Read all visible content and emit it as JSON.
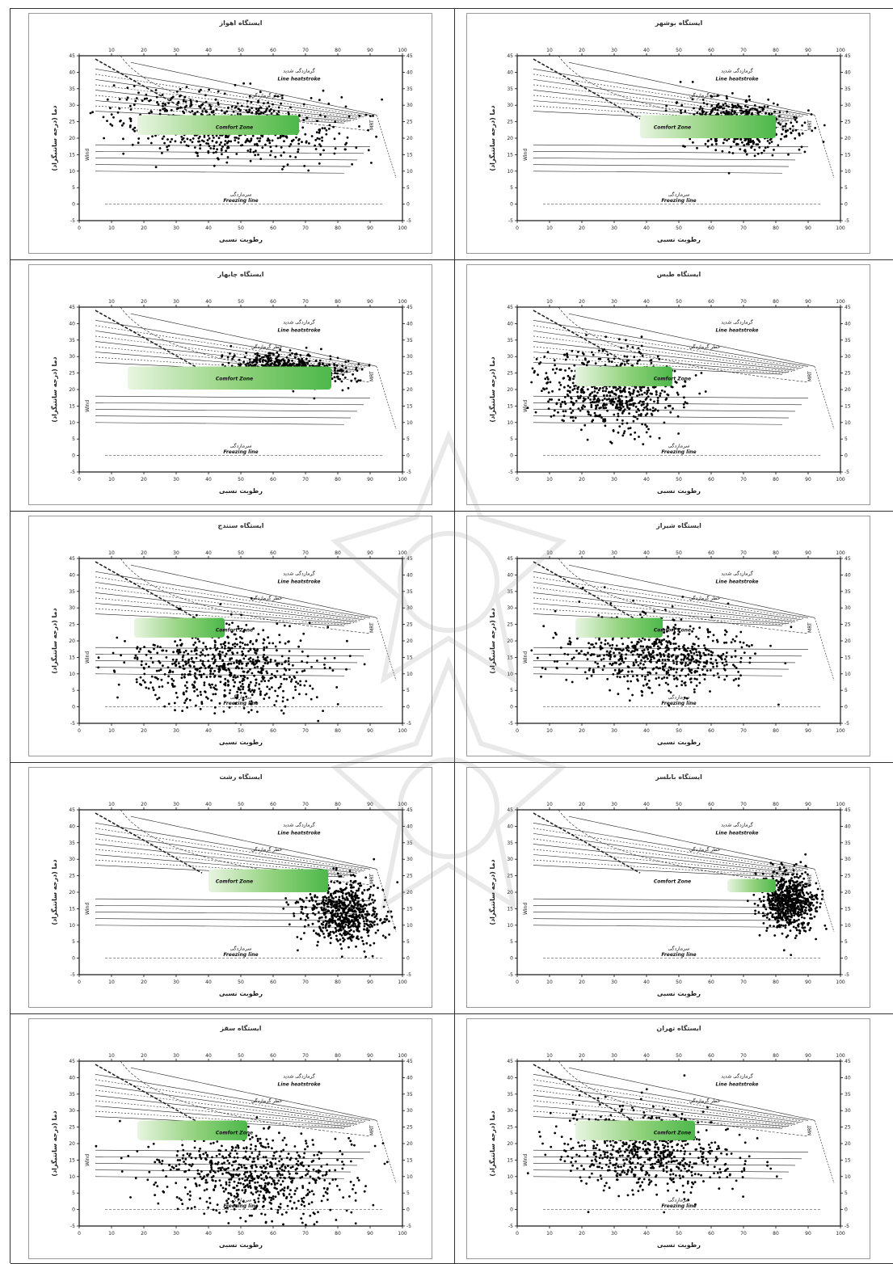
{
  "figure": {
    "panel_labels": {
      "x_axis": "رطوبت نسبی",
      "y_axis": "دما (درجه سانتیگراد)",
      "wind": "Wind",
      "line_heatstroke_fa": "گرمازدگی شدید",
      "line_heatstroke_en": "Line heatstroke",
      "heat_danger": "خطر گرمازدگی",
      "comfort_zone": "Comfort Zone",
      "freezing_fa": "سرمازدگی",
      "freezing_en": "Freezing line",
      "mrt": "MRT"
    }
  },
  "chart_data": [
    {
      "type": "scatter",
      "title": "ایستگاه اهواز",
      "xlabel": "رطوبت نسبی",
      "ylabel": "دما (درجه سانتیگراد)",
      "xlim": [
        0,
        100
      ],
      "ylim": [
        -5,
        45
      ],
      "x_ticks": [
        10,
        20,
        30,
        40,
        50,
        60,
        70,
        80,
        90,
        100
      ],
      "y_ticks": [
        -5,
        0,
        5,
        10,
        15,
        20,
        25,
        30,
        35,
        40,
        45
      ],
      "cloud": {
        "rh_center": 45,
        "rh_spread": 30,
        "t_center": 24,
        "t_spread": 8,
        "t_min": 8,
        "t_max": 48
      },
      "comfort_zone": {
        "rh_range": [
          18,
          68
        ],
        "t_range": [
          21,
          27
        ]
      }
    },
    {
      "type": "scatter",
      "title": "ایستگاه بوشهر",
      "xlabel": "رطوبت نسبی",
      "ylabel": "دما (درجه سانتیگراد)",
      "xlim": [
        0,
        100
      ],
      "ylim": [
        -5,
        45
      ],
      "x_ticks": [
        10,
        20,
        30,
        40,
        50,
        60,
        70,
        80,
        90,
        100
      ],
      "y_ticks": [
        -5,
        0,
        5,
        10,
        15,
        20,
        25,
        30,
        35,
        40,
        45
      ],
      "cloud": {
        "rh_center": 68,
        "rh_spread": 14,
        "t_center": 24,
        "t_spread": 6,
        "t_min": 8,
        "t_max": 38
      },
      "comfort_zone": {
        "rh_range": [
          38,
          80
        ],
        "t_range": [
          20,
          27
        ]
      }
    },
    {
      "type": "scatter",
      "title": "ایستگاه چابهار",
      "xlabel": "رطوبت نسبی",
      "ylabel": "دما (درجه سانتیگراد)",
      "xlim": [
        0,
        100
      ],
      "ylim": [
        -5,
        45
      ],
      "x_ticks": [
        10,
        20,
        30,
        40,
        50,
        60,
        70,
        80,
        90,
        100
      ],
      "y_ticks": [
        -5,
        0,
        5,
        10,
        15,
        20,
        25,
        30,
        35,
        40,
        45
      ],
      "cloud": {
        "rh_center": 65,
        "rh_spread": 14,
        "t_center": 26,
        "t_spread": 4,
        "t_min": 14,
        "t_max": 37
      },
      "comfort_zone": {
        "rh_range": [
          15,
          78
        ],
        "t_range": [
          20,
          27
        ]
      }
    },
    {
      "type": "scatter",
      "title": "ایستگاه طبس",
      "xlabel": "رطوبت نسبی",
      "ylabel": "دما (درجه سانتیگراد)",
      "xlim": [
        0,
        100
      ],
      "ylim": [
        -5,
        45
      ],
      "x_ticks": [
        10,
        20,
        30,
        40,
        50,
        60,
        70,
        80,
        90,
        100
      ],
      "y_ticks": [
        -5,
        0,
        5,
        10,
        15,
        20,
        25,
        30,
        35,
        40,
        45
      ],
      "cloud": {
        "rh_center": 30,
        "rh_spread": 18,
        "t_center": 20,
        "t_spread": 10,
        "t_min": -3,
        "t_max": 45
      },
      "comfort_zone": {
        "rh_range": [
          18,
          48
        ],
        "t_range": [
          21,
          27
        ]
      }
    },
    {
      "type": "scatter",
      "title": "ایستگاه سنندج",
      "xlabel": "رطوبت نسبی",
      "ylabel": "دما (درجه سانتیگراد)",
      "xlim": [
        0,
        100
      ],
      "ylim": [
        -5,
        45
      ],
      "x_ticks": [
        10,
        20,
        30,
        40,
        50,
        60,
        70,
        80,
        90,
        100
      ],
      "y_ticks": [
        -5,
        0,
        5,
        10,
        15,
        20,
        25,
        30,
        35,
        40,
        45
      ],
      "cloud": {
        "rh_center": 45,
        "rh_spread": 24,
        "t_center": 12,
        "t_spread": 11,
        "t_min": -10,
        "t_max": 37
      },
      "comfort_zone": {
        "rh_range": [
          17,
          45
        ],
        "t_range": [
          21,
          27
        ]
      }
    },
    {
      "type": "scatter",
      "title": "ایستگاه شیراز",
      "xlabel": "رطوبت نسبی",
      "ylabel": "دما (درجه سانتیگراد)",
      "xlim": [
        0,
        100
      ],
      "ylim": [
        -5,
        45
      ],
      "x_ticks": [
        10,
        20,
        30,
        40,
        50,
        60,
        70,
        80,
        90,
        100
      ],
      "y_ticks": [
        -5,
        0,
        5,
        10,
        15,
        20,
        25,
        30,
        35,
        40,
        45
      ],
      "cloud": {
        "rh_center": 42,
        "rh_spread": 24,
        "t_center": 16,
        "t_spread": 9,
        "t_min": -4,
        "t_max": 38
      },
      "comfort_zone": {
        "rh_range": [
          18,
          45
        ],
        "t_range": [
          21,
          27
        ]
      }
    },
    {
      "type": "scatter",
      "title": "ایستگاه رشت",
      "xlabel": "رطوبت نسبی",
      "ylabel": "دما (درجه سانتیگراد)",
      "xlim": [
        0,
        100
      ],
      "ylim": [
        -5,
        45
      ],
      "x_ticks": [
        10,
        20,
        30,
        40,
        50,
        60,
        70,
        80,
        90,
        100
      ],
      "y_ticks": [
        -5,
        0,
        5,
        10,
        15,
        20,
        25,
        30,
        35,
        40,
        45
      ],
      "cloud": {
        "rh_center": 82,
        "rh_spread": 10,
        "t_center": 14,
        "t_spread": 8,
        "t_min": -5,
        "t_max": 32
      },
      "comfort_zone": {
        "rh_range": [
          40,
          77
        ],
        "t_range": [
          20,
          27
        ]
      }
    },
    {
      "type": "scatter",
      "title": "ایستگاه بابلسر",
      "xlabel": "رطوبت نسبی",
      "ylabel": "دما (درجه سانتیگراد)",
      "xlim": [
        0,
        100
      ],
      "ylim": [
        -5,
        45
      ],
      "x_ticks": [
        10,
        20,
        30,
        40,
        50,
        60,
        70,
        80,
        90,
        100
      ],
      "y_ticks": [
        -5,
        0,
        5,
        10,
        15,
        20,
        25,
        30,
        35,
        40,
        45
      ],
      "cloud": {
        "rh_center": 84,
        "rh_spread": 7,
        "t_center": 17,
        "t_spread": 7,
        "t_min": 0,
        "t_max": 33
      },
      "comfort_zone": {
        "rh_range": [
          65,
          80
        ],
        "t_range": [
          20,
          24
        ]
      }
    },
    {
      "type": "scatter",
      "title": "ایستگاه سقز",
      "xlabel": "رطوبت نسبی",
      "ylabel": "دما (درجه سانتیگراد)",
      "xlim": [
        0,
        100
      ],
      "ylim": [
        -5,
        45
      ],
      "x_ticks": [
        10,
        20,
        30,
        40,
        50,
        60,
        70,
        80,
        90,
        100
      ],
      "y_ticks": [
        -5,
        0,
        5,
        10,
        15,
        20,
        25,
        30,
        35,
        40,
        45
      ],
      "cloud": {
        "rh_center": 55,
        "rh_spread": 24,
        "t_center": 10,
        "t_spread": 11,
        "t_min": -15,
        "t_max": 35
      },
      "comfort_zone": {
        "rh_range": [
          18,
          52
        ],
        "t_range": [
          21,
          27
        ]
      }
    },
    {
      "type": "scatter",
      "title": "ایستگاه تهران",
      "xlabel": "رطوبت نسبی",
      "ylabel": "دما (درجه سانتیگراد)",
      "xlim": [
        0,
        100
      ],
      "ylim": [
        -5,
        45
      ],
      "x_ticks": [
        10,
        20,
        30,
        40,
        50,
        60,
        70,
        80,
        90,
        100
      ],
      "y_ticks": [
        -5,
        0,
        5,
        10,
        15,
        20,
        25,
        30,
        35,
        40,
        45
      ],
      "cloud": {
        "rh_center": 40,
        "rh_spread": 22,
        "t_center": 18,
        "t_spread": 10,
        "t_min": -5,
        "t_max": 42
      },
      "comfort_zone": {
        "rh_range": [
          18,
          55
        ],
        "t_range": [
          21,
          27
        ]
      }
    }
  ]
}
